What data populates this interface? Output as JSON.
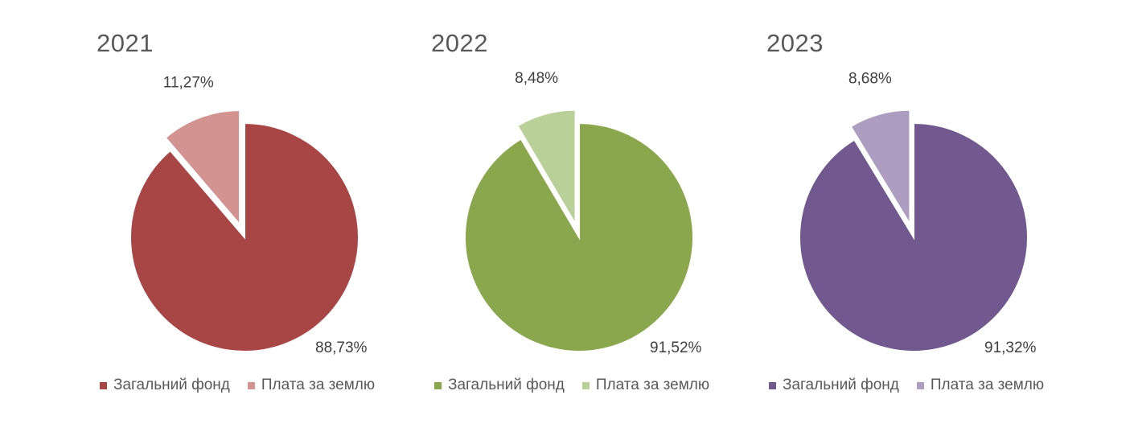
{
  "chart_data": [
    {
      "type": "pie",
      "title": "2021",
      "categories": [
        "Загальний фонд",
        "Плата за землю"
      ],
      "values": [
        88.73,
        11.27
      ],
      "labels": [
        "88,73%",
        "11,27%"
      ],
      "colors": [
        "#A84645",
        "#D39391"
      ],
      "exploded": "Плата за землю",
      "legend": "bottom"
    },
    {
      "type": "pie",
      "title": "2022",
      "categories": [
        "Загальний фонд",
        "Плата за землю"
      ],
      "values": [
        91.52,
        8.48
      ],
      "labels": [
        "91,52%",
        "8,48%"
      ],
      "colors": [
        "#8AA74E",
        "#B9D098"
      ],
      "exploded": "Плата за землю",
      "legend": "bottom"
    },
    {
      "type": "pie",
      "title": "2023",
      "categories": [
        "Загальний фонд",
        "Плата за землю"
      ],
      "values": [
        91.32,
        8.68
      ],
      "labels": [
        "91,32%",
        "8,68%"
      ],
      "colors": [
        "#71588F",
        "#AC9DC1"
      ],
      "exploded": "Плата за землю",
      "legend": "bottom"
    }
  ]
}
